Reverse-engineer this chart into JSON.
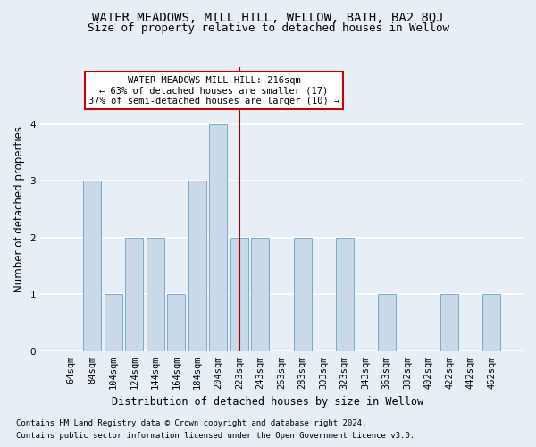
{
  "title": "WATER MEADOWS, MILL HILL, WELLOW, BATH, BA2 8QJ",
  "subtitle": "Size of property relative to detached houses in Wellow",
  "xlabel": "Distribution of detached houses by size in Wellow",
  "ylabel": "Number of detached properties",
  "footnote1": "Contains HM Land Registry data © Crown copyright and database right 2024.",
  "footnote2": "Contains public sector information licensed under the Open Government Licence v3.0.",
  "categories": [
    "64sqm",
    "84sqm",
    "104sqm",
    "124sqm",
    "144sqm",
    "164sqm",
    "184sqm",
    "204sqm",
    "223sqm",
    "243sqm",
    "263sqm",
    "283sqm",
    "303sqm",
    "323sqm",
    "343sqm",
    "363sqm",
    "382sqm",
    "402sqm",
    "422sqm",
    "442sqm",
    "462sqm"
  ],
  "values": [
    0,
    3,
    1,
    2,
    2,
    1,
    3,
    4,
    2,
    2,
    0,
    2,
    0,
    2,
    0,
    1,
    0,
    0,
    1,
    0,
    1
  ],
  "bar_color": "#c9d9ea",
  "bar_edge_color": "#7aaac8",
  "marker_index": 8,
  "marker_color": "#aa0000",
  "ylim": [
    0,
    5
  ],
  "yticks": [
    0,
    1,
    2,
    3,
    4
  ],
  "annotation_title": "WATER MEADOWS MILL HILL: 216sqm",
  "annotation_line1": "← 63% of detached houses are smaller (17)",
  "annotation_line2": "37% of semi-detached houses are larger (10) →",
  "annotation_box_color": "#ffffff",
  "annotation_box_edge": "#cc0000",
  "background_color": "#e8eef5",
  "grid_color": "#ffffff",
  "title_fontsize": 10,
  "subtitle_fontsize": 9,
  "axis_label_fontsize": 8.5,
  "tick_fontsize": 7.5,
  "annotation_fontsize": 7.5,
  "footnote_fontsize": 6.5
}
